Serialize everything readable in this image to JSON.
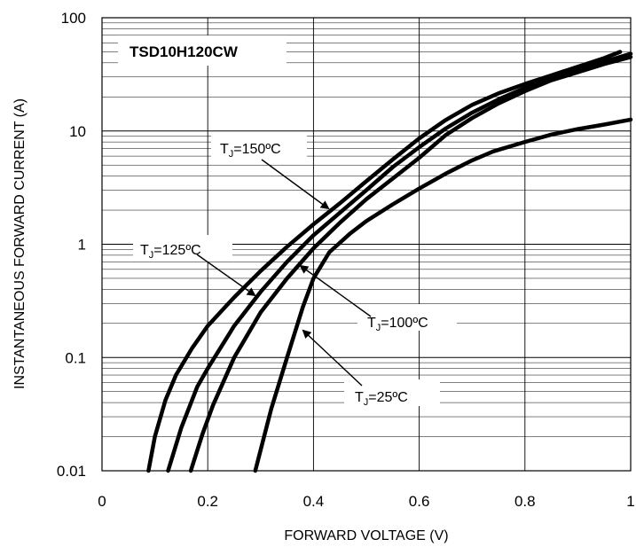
{
  "chart_data": {
    "type": "line",
    "title": "TSD10H120CW",
    "xlabel": "FORWARD VOLTAGE (V)",
    "ylabel": "INSTANTANEOUS  FORWARD CURRENT (A)",
    "xlim": [
      0,
      1
    ],
    "ylim": [
      0.01,
      100
    ],
    "y_scale": "log",
    "grid": true,
    "x_ticks": [
      0,
      0.2,
      0.4,
      0.6,
      0.8,
      1
    ],
    "x_tick_labels": [
      "0",
      "0.2",
      "0.4",
      "0.6",
      "0.8",
      "1"
    ],
    "y_ticks": [
      0.01,
      0.1,
      1,
      10,
      100
    ],
    "y_tick_labels": [
      "0.01",
      "0.1",
      "1",
      "10",
      "100"
    ],
    "series": [
      {
        "x": [
          0.088,
          0.1,
          0.12,
          0.14,
          0.17,
          0.2,
          0.25,
          0.3,
          0.35,
          0.4,
          0.45,
          0.5,
          0.55,
          0.6,
          0.65,
          0.7,
          0.75,
          0.8,
          0.85,
          0.9,
          0.95,
          0.98
        ],
        "y": [
          0.01,
          0.02,
          0.042,
          0.07,
          0.12,
          0.19,
          0.34,
          0.58,
          0.95,
          1.5,
          2.3,
          3.6,
          5.6,
          8.6,
          12.5,
          17,
          21.5,
          26,
          31,
          37,
          44,
          50
        ]
      },
      {
        "x": [
          0.125,
          0.15,
          0.18,
          0.2,
          0.25,
          0.3,
          0.35,
          0.4,
          0.45,
          0.5,
          0.55,
          0.6,
          0.65,
          0.7,
          0.75,
          0.8,
          0.85,
          0.9,
          0.95,
          1.0
        ],
        "y": [
          0.01,
          0.024,
          0.055,
          0.08,
          0.19,
          0.38,
          0.7,
          1.2,
          1.9,
          3.0,
          4.8,
          7.2,
          10.5,
          14.5,
          19,
          24,
          29,
          35,
          41,
          48
        ]
      },
      {
        "x": [
          0.168,
          0.19,
          0.21,
          0.25,
          0.3,
          0.35,
          0.4,
          0.45,
          0.5,
          0.55,
          0.6,
          0.65,
          0.7,
          0.75,
          0.8,
          0.85,
          0.9,
          0.95,
          1.0
        ],
        "y": [
          0.01,
          0.021,
          0.038,
          0.1,
          0.25,
          0.5,
          0.92,
          1.55,
          2.5,
          3.8,
          5.8,
          9.2,
          13,
          17.5,
          22.5,
          28,
          33,
          39,
          45
        ]
      },
      {
        "x": [
          0.29,
          0.32,
          0.35,
          0.38,
          0.4,
          0.43,
          0.47,
          0.5,
          0.55,
          0.6,
          0.65,
          0.7,
          0.74,
          0.8,
          0.85,
          0.9,
          0.95,
          1.0
        ],
        "y": [
          0.01,
          0.035,
          0.1,
          0.28,
          0.5,
          0.85,
          1.25,
          1.6,
          2.25,
          3.1,
          4.2,
          5.5,
          6.6,
          8.0,
          9.3,
          10.4,
          11.4,
          12.6
        ]
      }
    ],
    "annotations": [
      {
        "main": "T",
        "sub": "J",
        "rest": "=150ºC"
      },
      {
        "main": "T",
        "sub": "J",
        "rest": "=125ºC"
      },
      {
        "main": "T",
        "sub": "J",
        "rest": "=100ºC"
      },
      {
        "main": "T",
        "sub": "J",
        "rest": "=25ºC"
      }
    ]
  }
}
